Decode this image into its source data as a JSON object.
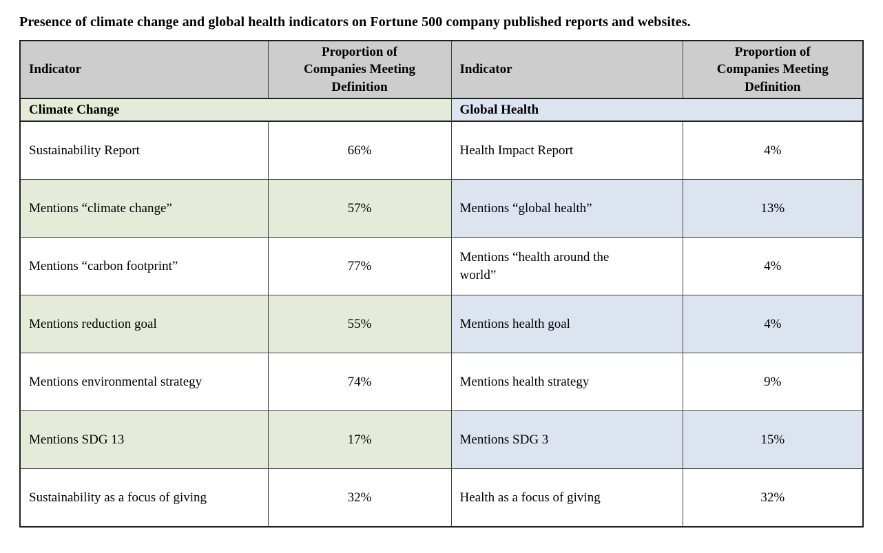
{
  "page": {
    "title": "Presence of climate change and global health indicators on Fortune 500 company published reports and websites."
  },
  "table": {
    "columns": {
      "indicator_label": "Indicator",
      "proportion_label": "Proportion of\nCompanies Meeting\nDefinition"
    },
    "sections": {
      "climate": "Climate Change",
      "health": "Global Health"
    },
    "rows": [
      {
        "climate_indicator": "Sustainability Report",
        "climate_value": "66%",
        "health_indicator": "Health Impact Report",
        "health_value": "4%"
      },
      {
        "climate_indicator": "Mentions “climate change”",
        "climate_value": "57%",
        "health_indicator": "Mentions “global health”",
        "health_value": "13%"
      },
      {
        "climate_indicator": "Mentions “carbon footprint”",
        "climate_value": "77%",
        "health_indicator": "Mentions “health around the\nworld”",
        "health_value": "4%"
      },
      {
        "climate_indicator": "Mentions reduction goal",
        "climate_value": "55%",
        "health_indicator": "Mentions health goal",
        "health_value": "4%"
      },
      {
        "climate_indicator": "Mentions environmental strategy",
        "climate_value": "74%",
        "health_indicator": "Mentions health strategy",
        "health_value": "9%"
      },
      {
        "climate_indicator": "Mentions SDG 13",
        "climate_value": "17%",
        "health_indicator": "Mentions SDG 3",
        "health_value": "15%"
      },
      {
        "climate_indicator": "Sustainability as a focus of giving",
        "climate_value": "32%",
        "health_indicator": "Health as a focus of giving",
        "health_value": "32%"
      }
    ]
  },
  "colors": {
    "header_bg": "#cdcdcd",
    "climate_shade": "#e4ecd9",
    "health_shade": "#dce4f0",
    "border": "#404040",
    "outer_border": "#1f1f1f"
  }
}
